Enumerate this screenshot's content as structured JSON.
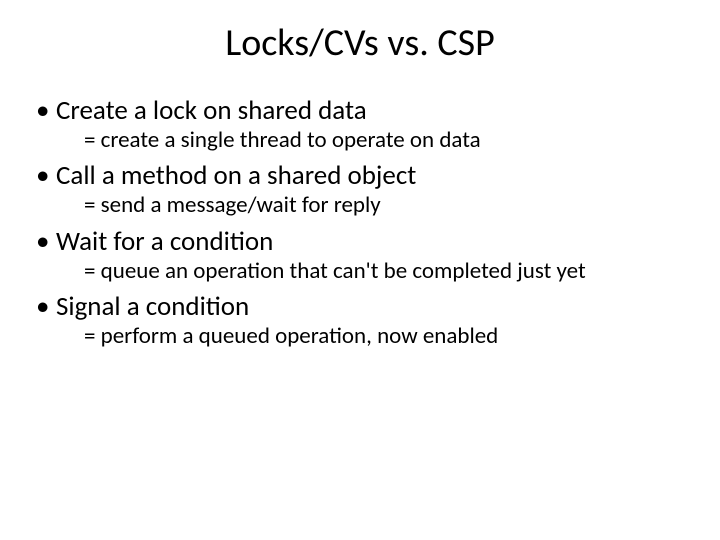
{
  "slide": {
    "title": "Locks/CVs vs. CSP",
    "title_fontsize": 38,
    "bullet_fontsize": 27,
    "sub_fontsize": 23,
    "text_color": "#000000",
    "background_color": "#ffffff",
    "bullets": [
      {
        "text": "Create a lock on shared data",
        "sub": "= create a single thread to operate on data"
      },
      {
        "text": "Call a method on a shared object",
        "sub": "= send a message/wait for reply"
      },
      {
        "text": "Wait for a condition",
        "sub": "= queue an operation that can't be completed just yet"
      },
      {
        "text": "Signal a condition",
        "sub": "= perform a queued operation, now enabled"
      }
    ]
  }
}
